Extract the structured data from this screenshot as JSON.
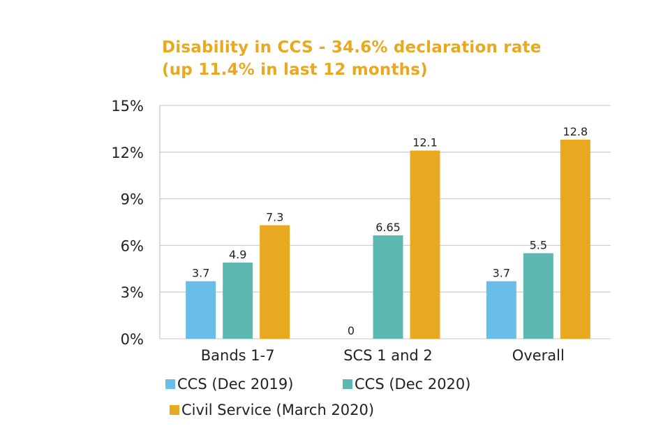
{
  "chart_data": {
    "type": "bar",
    "title": "Disability in CCS - 34.6% declaration rate (up 11.4% in last 12 months)",
    "title_lines": [
      "Disability in CCS - 34.6% declaration rate",
      "(up 11.4% in last 12 months)"
    ],
    "xlabel": "",
    "ylabel": "",
    "ylim": [
      0,
      15
    ],
    "yticks": [
      0,
      3,
      6,
      9,
      12,
      15
    ],
    "ytick_labels": [
      "0%",
      "3%",
      "6%",
      "9%",
      "12%",
      "15%"
    ],
    "grid": true,
    "legend_position": "bottom",
    "categories": [
      "Bands 1-7",
      "SCS 1 and 2",
      "Overall"
    ],
    "series": [
      {
        "name": "CCS (Dec 2019)",
        "color": "#69BDE6",
        "values": [
          3.7,
          0,
          3.7
        ],
        "labels": [
          "3.7",
          "0",
          "3.7"
        ]
      },
      {
        "name": "CCS (Dec 2020)",
        "color": "#5DB8B2",
        "values": [
          4.9,
          6.65,
          5.5
        ],
        "labels": [
          "4.9",
          "6.65",
          "5.5"
        ]
      },
      {
        "name": "Civil Service (March 2020)",
        "color": "#E8A820",
        "values": [
          7.3,
          12.1,
          12.8
        ],
        "labels": [
          "7.3",
          "12.1",
          "12.8"
        ]
      }
    ]
  }
}
